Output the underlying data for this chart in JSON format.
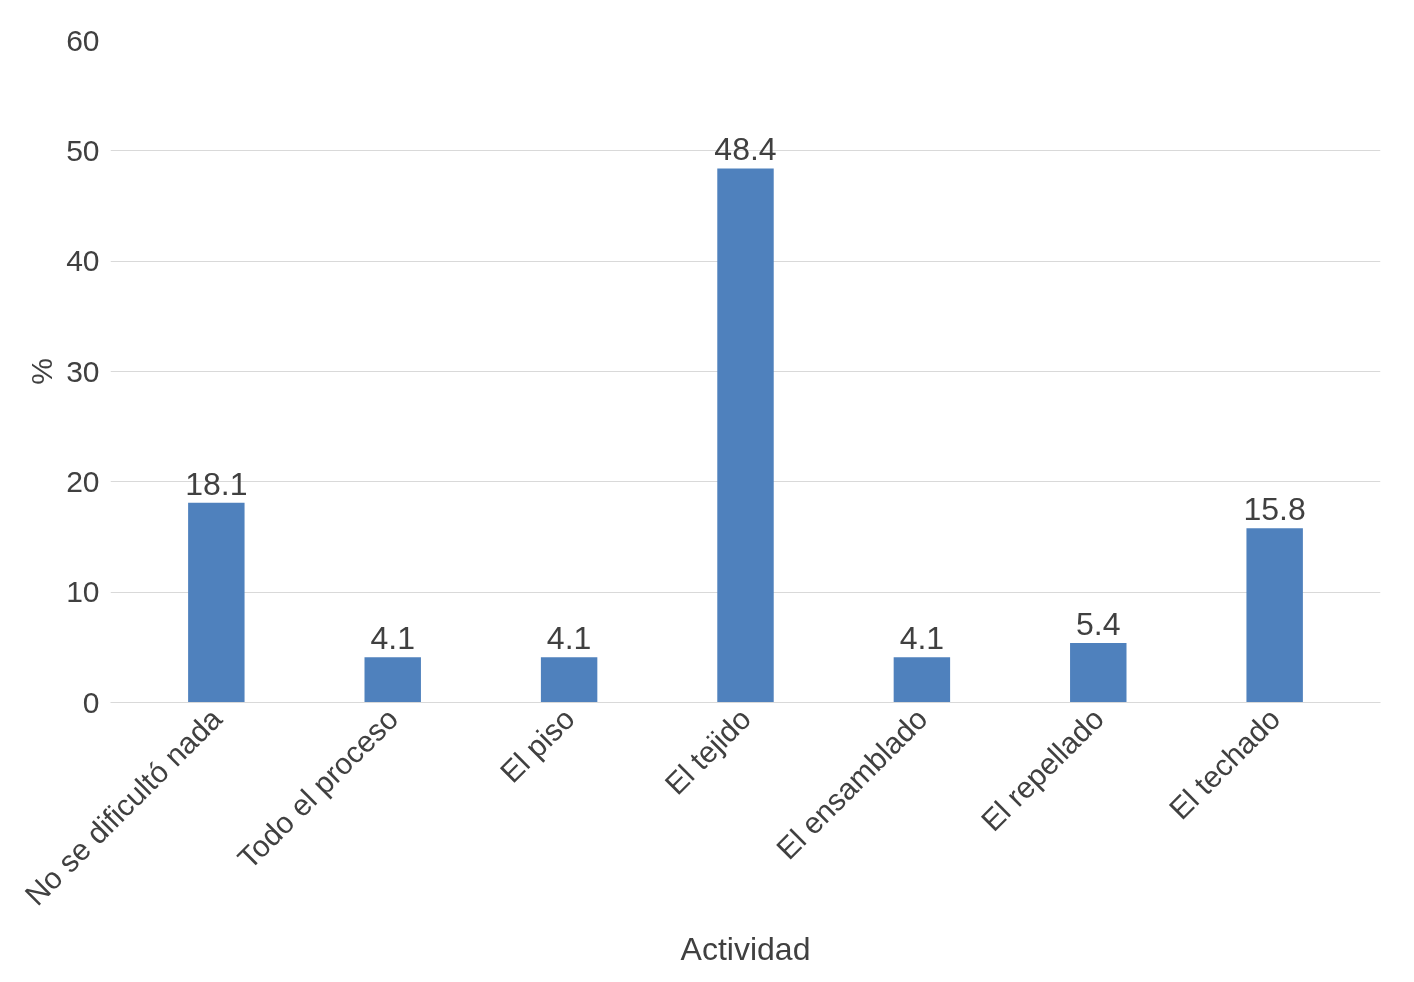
{
  "chart_data": {
    "type": "bar",
    "xlabel": "Actividad",
    "ylabel": "%",
    "categories": [
      "No se dificultó nada",
      "Todo el proceso",
      "El piso",
      "El tejido",
      "El ensamblado",
      "El repellado",
      "El techado"
    ],
    "values": [
      18.1,
      4.1,
      4.1,
      48.4,
      4.1,
      5.4,
      15.8
    ],
    "color": "#4f81bd",
    "ylim": [
      0,
      60
    ],
    "yticks": [
      0,
      10,
      20,
      30,
      40,
      50,
      60
    ],
    "grid": "y",
    "data_labels": true
  }
}
